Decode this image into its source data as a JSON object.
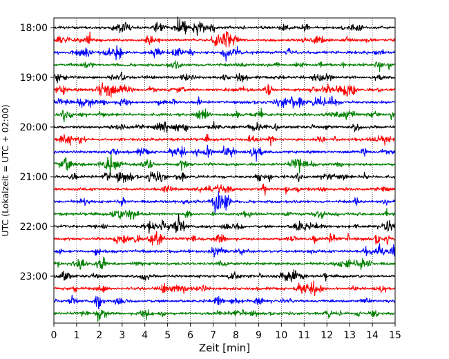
{
  "chart_data": {
    "type": "line",
    "title": "",
    "xlabel": "Zeit  [min]",
    "ylabel": "UTC (Lokalzeit = UTC + 02:00)",
    "xlim": [
      0,
      15
    ],
    "x_ticks": [
      0,
      1,
      2,
      3,
      4,
      5,
      6,
      7,
      8,
      9,
      10,
      11,
      12,
      13,
      14,
      15
    ],
    "y_tick_labels": [
      "18:00",
      "19:00",
      "20:00",
      "21:00",
      "22:00",
      "23:00"
    ],
    "trace_interval_minutes": 15,
    "trace_start_times": [
      "18:00",
      "18:15",
      "18:30",
      "18:45",
      "19:00",
      "19:15",
      "19:30",
      "19:45",
      "20:00",
      "20:15",
      "20:30",
      "20:45",
      "21:00",
      "21:15",
      "21:30",
      "21:45",
      "22:00",
      "22:15",
      "22:30",
      "22:45",
      "23:00",
      "23:15",
      "23:30",
      "23:45"
    ],
    "trace_color_cycle": [
      "#000000",
      "#ff0000",
      "#0000ff",
      "#008000"
    ],
    "grid": "vertical dotted lines at each minute",
    "legend": "none"
  }
}
